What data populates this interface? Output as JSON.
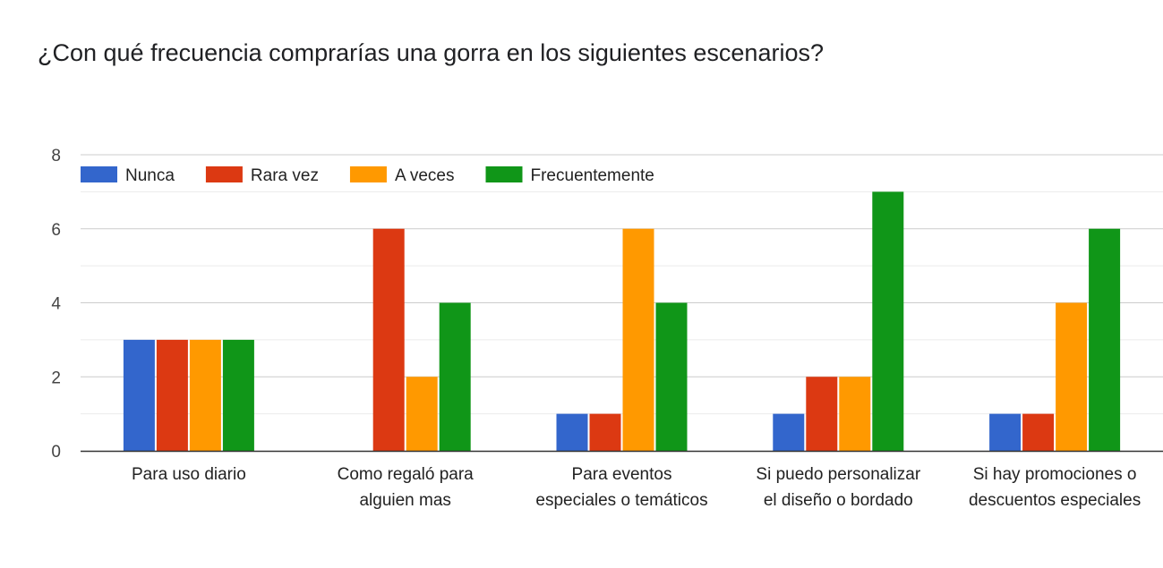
{
  "title": "¿Con qué frecuencia comprarías una gorra en los siguientes escenarios?",
  "chart_data": {
    "type": "bar",
    "title": "¿Con qué frecuencia comprarías una gorra en los siguientes escenarios?",
    "categories": [
      [
        "Para uso diario"
      ],
      [
        "Como regaló para",
        "alguien mas"
      ],
      [
        "Para eventos",
        "especiales o temáticos"
      ],
      [
        "Si puedo personalizar",
        "el diseño o bordado"
      ],
      [
        "Si hay promociones o",
        "descuentos especiales"
      ]
    ],
    "series": [
      {
        "name": "Nunca",
        "color": "#3366cc",
        "values": [
          3,
          0,
          1,
          1,
          1
        ]
      },
      {
        "name": "Rara vez",
        "color": "#dc3912",
        "values": [
          3,
          6,
          1,
          2,
          1
        ]
      },
      {
        "name": "A veces",
        "color": "#ff9900",
        "values": [
          3,
          2,
          6,
          2,
          4
        ]
      },
      {
        "name": "Frecuentemente",
        "color": "#109618",
        "values": [
          3,
          4,
          4,
          7,
          6
        ]
      }
    ],
    "ylim": [
      0,
      8
    ],
    "yticks": [
      0,
      2,
      4,
      6,
      8
    ],
    "grid": true,
    "legend_position": "top-left"
  }
}
